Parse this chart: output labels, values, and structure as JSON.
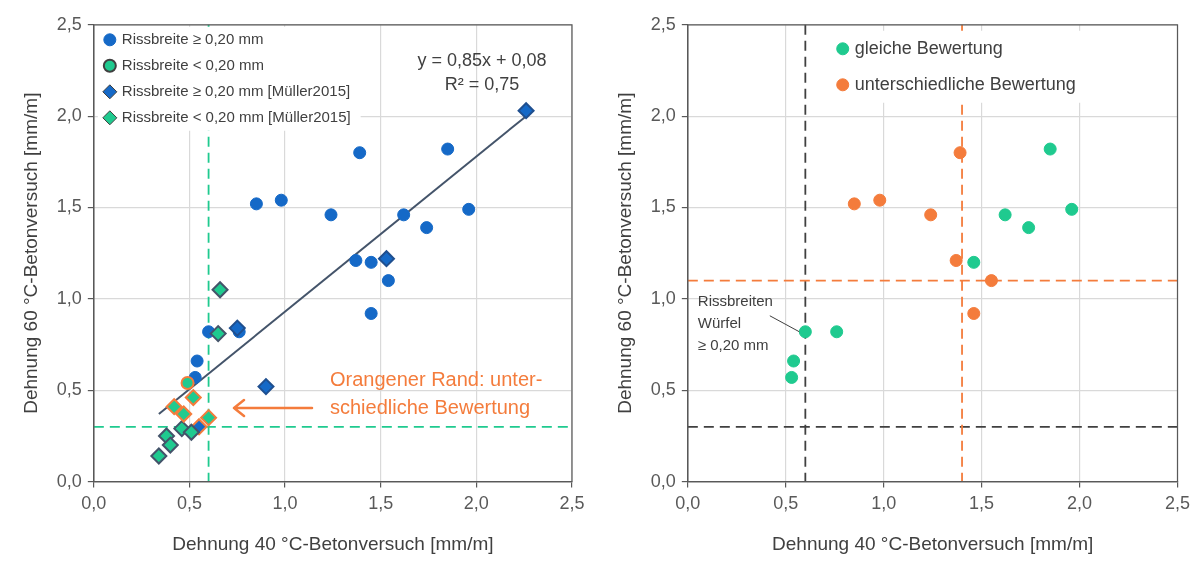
{
  "chart_data": [
    {
      "type": "scatter",
      "xlabel": "Dehnung 40 °C-Betonversuch [mm/m]",
      "ylabel": "Dehnung 60 °C-Betonversuch [mm/m]",
      "xlim": [
        0,
        2.5
      ],
      "ylim": [
        0,
        2.5
      ],
      "xticks": [
        {
          "value": 0,
          "label": "0,0"
        },
        {
          "value": 0.5,
          "label": "0,5"
        },
        {
          "value": 1,
          "label": "1,0"
        },
        {
          "value": 1.5,
          "label": "1,5"
        },
        {
          "value": 2,
          "label": "2,0"
        },
        {
          "value": 2.5,
          "label": "2,5"
        }
      ],
      "yticks": [
        {
          "value": 0,
          "label": "0,0"
        },
        {
          "value": 0.5,
          "label": "0,5"
        },
        {
          "value": 1,
          "label": "1,0"
        },
        {
          "value": 1.5,
          "label": "1,5"
        },
        {
          "value": 2,
          "label": "2,0"
        },
        {
          "value": 2.5,
          "label": "2,5"
        }
      ],
      "grid": true,
      "legend": "top left",
      "series": [
        {
          "name": "Rissbreite ≥ 0,20 mm",
          "marker": "circle",
          "color": "#1569c7",
          "x": [
            0.85,
            0.98,
            1.24,
            1.39,
            1.62,
            1.74,
            1.85,
            1.96,
            1.37,
            1.45,
            1.54,
            1.45,
            0.6,
            0.76,
            0.54,
            0.53
          ],
          "values": [
            1.52,
            1.54,
            1.46,
            1.8,
            1.46,
            1.39,
            1.82,
            1.49,
            1.21,
            1.2,
            1.1,
            0.92,
            0.82,
            0.82,
            0.66,
            0.57
          ]
        },
        {
          "name": "Rissbreite < 0,20 mm",
          "marker": "circle",
          "color": "#1fca8f",
          "colors": [
            "#f47c3c"
          ],
          "x": [
            0.49
          ],
          "values": [
            0.54
          ]
        },
        {
          "name": "Rissbreite ≥ 0,20 mm [Müller2015]",
          "marker": "diamond",
          "color": "#1569c7",
          "colors": [
            "#1f4f8f",
            "#1f4f8f",
            "#1f4f8f",
            "#1f4f8f",
            "#f47c3c"
          ],
          "x": [
            2.26,
            1.53,
            0.75,
            0.9,
            0.55
          ],
          "values": [
            2.03,
            1.22,
            0.84,
            0.52,
            0.3
          ]
        },
        {
          "name": "Rissbreite < 0,20 mm [Müller2015]",
          "marker": "diamond",
          "color": "#1fca8f",
          "colors": [
            "#44546a",
            "#44546a",
            "#44546a",
            "#44546a",
            "#44546a",
            "#44546a",
            "#44546a",
            "#f47c3c",
            "#f47c3c",
            "#f47c3c",
            "#f47c3c"
          ],
          "x": [
            0.66,
            0.65,
            0.46,
            0.51,
            0.38,
            0.4,
            0.34,
            0.42,
            0.47,
            0.52,
            0.6
          ],
          "values": [
            1.05,
            0.81,
            0.29,
            0.27,
            0.25,
            0.2,
            0.14,
            0.41,
            0.37,
            0.46,
            0.35
          ]
        },
        {
          "type": "line",
          "color": "#44546a",
          "x": [
            0.34,
            2.26
          ],
          "values": [
            0.37,
            2.0
          ]
        }
      ],
      "ref_lines": [
        {
          "axis": "x",
          "value": 0.6,
          "color": "#1fca8f",
          "line_style": "dashed"
        },
        {
          "axis": "y",
          "value": 0.3,
          "color": "#1fca8f",
          "line_style": "dashed"
        }
      ],
      "annotations": [
        "y = 0,85x + 0,08",
        "R² = 0,75",
        "Orangener Rand: unter-\nschiedliche Bewertung"
      ]
    },
    {
      "type": "scatter",
      "xlabel": "Dehnung 40 °C-Betonversuch [mm/m]",
      "ylabel": "Dehnung 60 °C-Betonversuch [mm/m]",
      "xlim": [
        0,
        2.5
      ],
      "ylim": [
        0,
        2.5
      ],
      "xticks": [
        {
          "value": 0,
          "label": "0,0"
        },
        {
          "value": 0.5,
          "label": "0,5"
        },
        {
          "value": 1,
          "label": "1,0"
        },
        {
          "value": 1.5,
          "label": "1,5"
        },
        {
          "value": 2,
          "label": "2,0"
        },
        {
          "value": 2.5,
          "label": "2,5"
        }
      ],
      "yticks": [
        {
          "value": 0,
          "label": "0,0"
        },
        {
          "value": 0.5,
          "label": "0,5"
        },
        {
          "value": 1,
          "label": "1,0"
        },
        {
          "value": 1.5,
          "label": "1,5"
        },
        {
          "value": 2,
          "label": "2,0"
        },
        {
          "value": 2.5,
          "label": "2,5"
        }
      ],
      "grid": true,
      "legend": "top",
      "marker": "circle",
      "series": [
        {
          "name": "gleiche Bewertung",
          "color": "#1fca8f",
          "x": [
            0.6,
            0.76,
            0.54,
            0.53,
            1.46,
            1.62,
            1.74,
            1.85,
            1.96
          ],
          "values": [
            0.82,
            0.82,
            0.66,
            0.57,
            1.2,
            1.46,
            1.39,
            1.82,
            1.49
          ]
        },
        {
          "name": "unterschiedliche Bewertung",
          "color": "#f47c3c",
          "x": [
            0.85,
            0.98,
            1.24,
            1.39,
            1.37,
            1.55,
            1.46
          ],
          "values": [
            1.52,
            1.54,
            1.46,
            1.8,
            1.21,
            1.1,
            0.92
          ]
        }
      ],
      "ref_lines": [
        {
          "axis": "x",
          "value": 0.6,
          "color": "#404040",
          "line_style": "dashed"
        },
        {
          "axis": "y",
          "value": 0.3,
          "color": "#404040",
          "line_style": "dashed"
        },
        {
          "axis": "x",
          "value": 1.4,
          "color": "#f47c3c",
          "line_style": "dashed"
        },
        {
          "axis": "y",
          "value": 1.1,
          "color": "#f47c3c",
          "line_style": "dashed"
        }
      ],
      "annotations": [
        {
          "text": "Rissbreiten\nWürfel\n≥ 0,20 mm",
          "x": 0.6,
          "y": 0.82
        }
      ]
    }
  ]
}
